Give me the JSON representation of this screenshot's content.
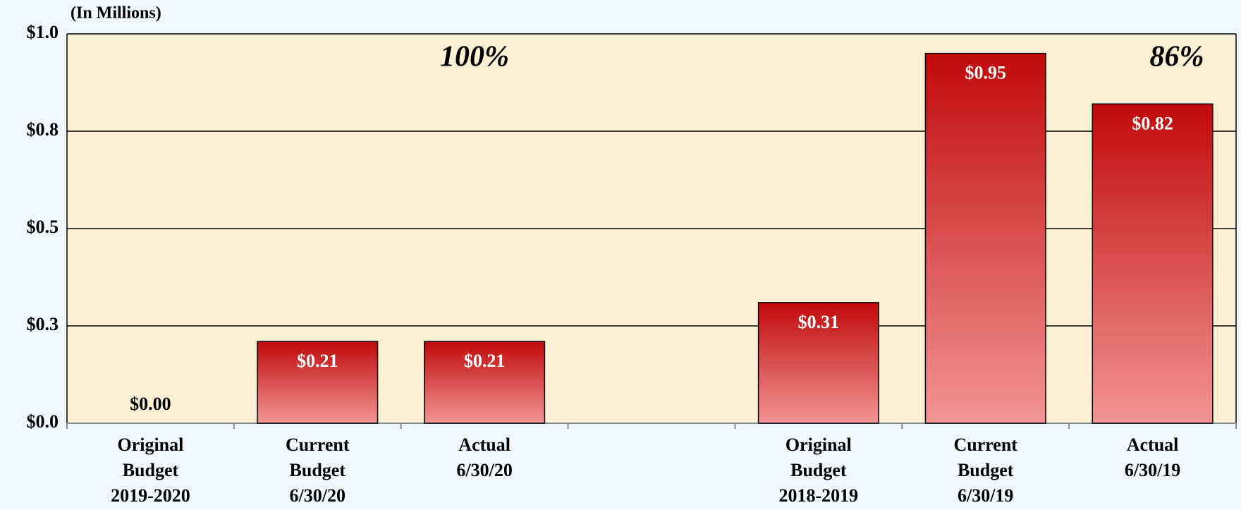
{
  "chart_data": {
    "type": "bar",
    "y_axis_label": "(In Millions)",
    "categories": [
      "Original Budget 2019-2020",
      "Current Budget 6/30/20",
      "Actual 6/30/20",
      null,
      "Original Budget 2018-2019",
      "Current Budget 6/30/19",
      "Actual 6/30/19"
    ],
    "values": [
      0,
      0.21,
      0.21,
      null,
      0.31,
      0.95,
      0.82
    ],
    "value_labels": [
      "$0.00",
      "$0.21",
      "$0.21",
      null,
      "$0.31",
      "$0.95",
      "$0.82"
    ],
    "color": "#c00000",
    "ylim": [
      0,
      1.0
    ],
    "yticks": [
      {
        "value": 0,
        "label": "$0.0"
      },
      {
        "value": 0.25,
        "label": "$0.3"
      },
      {
        "value": 0.5,
        "label": "$0.5"
      },
      {
        "value": 0.75,
        "label": "$0.8"
      },
      {
        "value": 1.0,
        "label": "$1.0"
      }
    ],
    "grid": true,
    "annotations": [
      "100%",
      "86%"
    ]
  }
}
